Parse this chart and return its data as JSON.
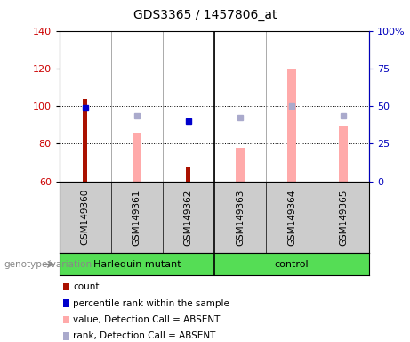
{
  "title": "GDS3365 / 1457806_at",
  "samples": [
    "GSM149360",
    "GSM149361",
    "GSM149362",
    "GSM149363",
    "GSM149364",
    "GSM149365"
  ],
  "ylim_left": [
    60,
    140
  ],
  "ylim_right": [
    0,
    100
  ],
  "yticks_left": [
    60,
    80,
    100,
    120,
    140
  ],
  "yticks_right": [
    0,
    25,
    50,
    75,
    100
  ],
  "ytick_labels_right": [
    "0",
    "25",
    "50",
    "75",
    "100%"
  ],
  "left_tick_color": "#cc0000",
  "right_tick_color": "#0000bb",
  "count_values": [
    104,
    null,
    68,
    null,
    null,
    null
  ],
  "count_color": "#aa1100",
  "rank_values": [
    99,
    null,
    92,
    null,
    null,
    null
  ],
  "rank_color": "#0000cc",
  "value_absent_values": [
    null,
    86,
    null,
    78,
    120,
    89
  ],
  "value_absent_color": "#ffaaaa",
  "rank_absent_values": [
    null,
    95,
    null,
    94,
    100,
    95
  ],
  "rank_absent_color": "#aaaacc",
  "bg_plot": "white",
  "bg_sample": "#cccccc",
  "bg_green": "#55dd55",
  "legend_items": [
    {
      "label": "count",
      "color": "#aa1100"
    },
    {
      "label": "percentile rank within the sample",
      "color": "#0000cc"
    },
    {
      "label": "value, Detection Call = ABSENT",
      "color": "#ffaaaa"
    },
    {
      "label": "rank, Detection Call = ABSENT",
      "color": "#aaaacc"
    }
  ],
  "group_row_label": "genotype/variation",
  "harlequin_label": "Harlequin mutant",
  "control_label": "control"
}
